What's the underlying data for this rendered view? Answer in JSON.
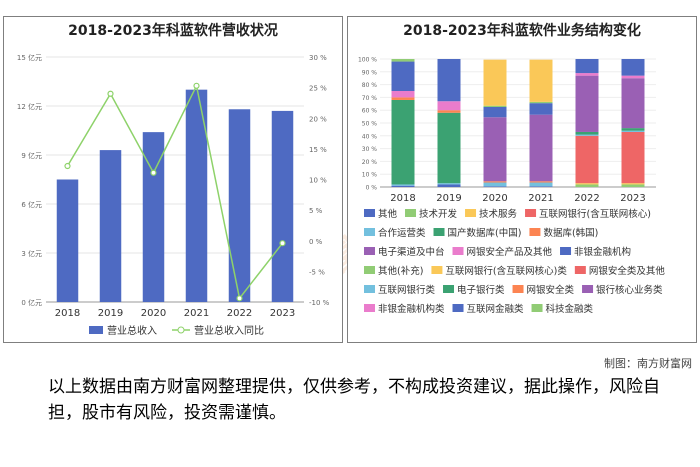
{
  "watermark": "南方财富网",
  "credit": "制图：南方财富网",
  "disclaimer": "以上数据由南方财富网整理提供，仅供参考，不构成投资建议，据此操作，风险自担，股市有风险，投资需谨慎。",
  "colors": {
    "revenue_bar": "#4e6ac2",
    "yoy_line": "#8ed26a"
  },
  "chart_data": [
    {
      "type": "bar",
      "title": "2018-2023年科蓝软件营收状况",
      "categories": [
        "2018",
        "2019",
        "2020",
        "2021",
        "2022",
        "2023"
      ],
      "y_left_ticks": [
        "0 亿元",
        "3 亿元",
        "6 亿元",
        "9 亿元",
        "12 亿元",
        "15 亿元"
      ],
      "y_right_ticks": [
        "-10 %",
        "-5 %",
        "0 %",
        "5 %",
        "10 %",
        "15 %",
        "20 %",
        "25 %",
        "30 %"
      ],
      "ylim_left": [
        0,
        15
      ],
      "ylim_right": [
        -10,
        30
      ],
      "series": [
        {
          "name": "营业总收入",
          "type": "bar",
          "axis": "left",
          "values": [
            7.5,
            9.3,
            10.4,
            13.0,
            11.8,
            11.7
          ]
        },
        {
          "name": "营业总收入同比",
          "type": "line",
          "axis": "right",
          "values": [
            12.2,
            24.0,
            11.1,
            25.3,
            -9.4,
            -0.4
          ]
        }
      ]
    },
    {
      "type": "bar",
      "stacked": true,
      "title": "2018-2023年科蓝软件业务结构变化",
      "categories": [
        "2018",
        "2019",
        "2020",
        "2021",
        "2022",
        "2023"
      ],
      "y_ticks": [
        "0 %",
        "10 %",
        "20 %",
        "30 %",
        "40 %",
        "50 %",
        "60 %",
        "70 %",
        "80 %",
        "90 %",
        "100 %"
      ],
      "ylim": [
        0,
        100
      ],
      "series": [
        {
          "name": "其他",
          "color": "#4e6ac2",
          "values": [
            1,
            2,
            0.5,
            0.5,
            0,
            0
          ]
        },
        {
          "name": "技术开发",
          "color": "#91cc75",
          "values": [
            0,
            0,
            0,
            0,
            0,
            0
          ]
        },
        {
          "name": "技术服务",
          "color": "#fac858",
          "values": [
            0,
            0,
            0,
            0,
            0,
            0
          ]
        },
        {
          "name": "互联网银行(含互联网核心)",
          "color": "#ee6666",
          "values": [
            0,
            0,
            0,
            0,
            0,
            0
          ]
        },
        {
          "name": "合作运营类",
          "color": "#73c0de",
          "values": [
            1,
            1,
            3,
            3,
            0,
            0
          ]
        },
        {
          "name": "国产数据库(中国)",
          "color": "#3ba272",
          "values": [
            66,
            55,
            0,
            0,
            0,
            0
          ]
        },
        {
          "name": "数据库(韩国)",
          "color": "#fc8452",
          "values": [
            2,
            2,
            1,
            1,
            0,
            0
          ]
        },
        {
          "name": "电子渠道及中台",
          "color": "#9a60b4",
          "values": [
            0,
            0,
            50,
            52,
            0,
            0
          ]
        },
        {
          "name": "网银安全产品及其他",
          "color": "#ea7ccc",
          "values": [
            5,
            7,
            0,
            0,
            0,
            0
          ]
        },
        {
          "name": "非银金融机构",
          "color": "#4e6ac2",
          "values": [
            23,
            33,
            8,
            9,
            0,
            0
          ]
        },
        {
          "name": "其他(补充)",
          "color": "#91cc75",
          "values": [
            2,
            0,
            1,
            1,
            2,
            2
          ]
        },
        {
          "name": "互联网银行(含互联网核心)类",
          "color": "#fac858",
          "values": [
            0,
            0,
            36,
            33,
            1,
            1
          ]
        },
        {
          "name": "网银安全类及其他",
          "color": "#ee6666",
          "values": [
            0,
            0,
            0,
            0,
            37,
            40
          ]
        },
        {
          "name": "互联网银行类",
          "color": "#73c0de",
          "values": [
            0,
            0,
            0,
            0,
            1,
            1
          ]
        },
        {
          "name": "电子银行类",
          "color": "#3ba272",
          "values": [
            0,
            0,
            0,
            0,
            2,
            2
          ]
        },
        {
          "name": "网银安全类",
          "color": "#fc8452",
          "values": [
            0,
            0,
            0,
            0,
            0,
            0
          ]
        },
        {
          "name": "银行核心业务类",
          "color": "#9a60b4",
          "values": [
            0,
            0,
            0,
            0,
            44,
            39
          ]
        },
        {
          "name": "非银金融机构类",
          "color": "#ea7ccc",
          "values": [
            0,
            0,
            0,
            0,
            2,
            2
          ]
        },
        {
          "name": "互联网金融类",
          "color": "#4e6ac2",
          "values": [
            0,
            0,
            0,
            0,
            11,
            13
          ]
        },
        {
          "name": "科技金融类",
          "color": "#91cc75",
          "values": [
            0,
            0,
            0,
            0,
            0,
            0
          ]
        }
      ]
    }
  ]
}
